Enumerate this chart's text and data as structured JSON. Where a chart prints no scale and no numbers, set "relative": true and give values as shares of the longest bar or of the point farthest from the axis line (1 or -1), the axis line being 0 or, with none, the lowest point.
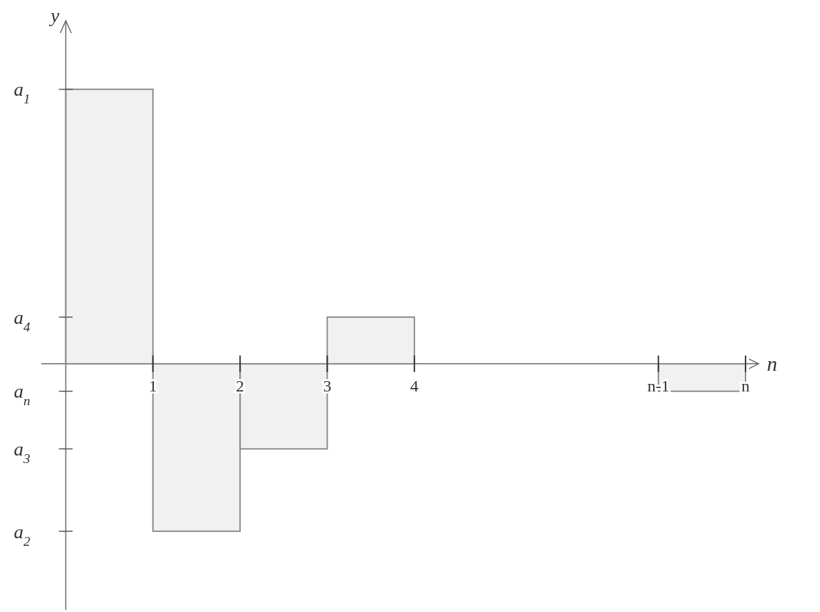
{
  "chart_data": {
    "type": "bar",
    "relative": true,
    "xlabel": "n",
    "ylabel": "y",
    "x": [
      0.5,
      1.5,
      2.5,
      3.5,
      7.3
    ],
    "values": [
      1,
      -0.61,
      -0.31,
      0.17,
      -0.1
    ],
    "color": "#8a8a8a",
    "xlim": [
      -0.28,
      7.95
    ],
    "xticks": [
      {
        "value": 1,
        "label": "1"
      },
      {
        "value": 2,
        "label": "2"
      },
      {
        "value": 3,
        "label": "3"
      },
      {
        "value": 4,
        "label": "4"
      },
      {
        "value": 6.8,
        "label": "n-1"
      },
      {
        "value": 7.8,
        "label": "n"
      }
    ],
    "annotations": [
      "a$_{1}$",
      "a$_{2}$",
      "a$_{3}$",
      "a$_{4}$",
      "a$_{n}$"
    ]
  }
}
